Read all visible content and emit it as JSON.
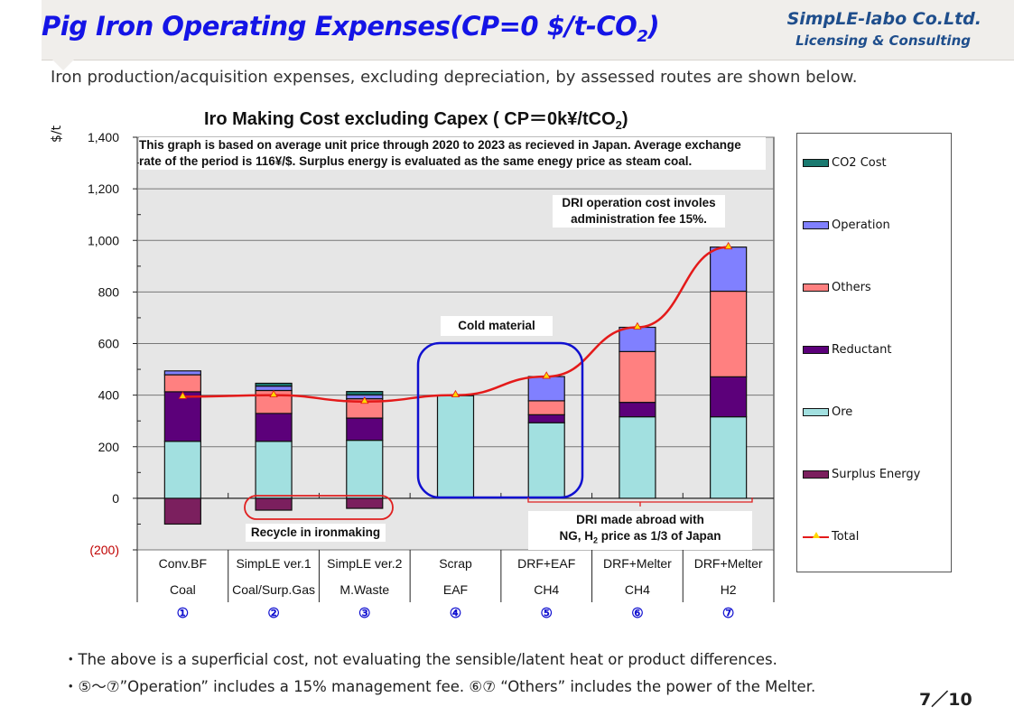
{
  "header": {
    "title": "Pig Iron Operating Expenses(CP=0 $/t-CO",
    "title_sub": "2",
    "title_end": ")",
    "company": "SimpLE-labo Co.Ltd.",
    "company_tagline": "Licensing & Consulting"
  },
  "intro": "Iron production/acquisition expenses, excluding depreciation, by assessed routes are shown below.",
  "chart_data": {
    "type": "bar",
    "stacked": true,
    "title": "Iro Making Cost excluding Capex ( CP＝0k¥/tCO",
    "title_sub": "2",
    "title_end": ")",
    "ylabel": "$/t",
    "ylim": [
      -200,
      1400
    ],
    "yticks": [
      -200,
      0,
      200,
      400,
      600,
      800,
      1000,
      1200,
      1400
    ],
    "ytick_labels": [
      "(200)",
      "0",
      "200",
      "400",
      "600",
      "800",
      "1,000",
      "1,200",
      "1,400"
    ],
    "grid": true,
    "legend_position": "right",
    "categories": [
      {
        "line1": "Conv.BF",
        "line2": "Coal",
        "number": "①"
      },
      {
        "line1": "SimpLE ver.1",
        "line2": "Coal/Surp.Gas",
        "number": "②"
      },
      {
        "line1": "SimpLE ver.2",
        "line2": "M.Waste",
        "number": "③"
      },
      {
        "line1": "Scrap",
        "line2": "EAF",
        "number": "④"
      },
      {
        "line1": "DRF+EAF",
        "line2": "CH4",
        "number": "⑤"
      },
      {
        "line1": "DRF+Melter",
        "line2": "CH4",
        "number": "⑥"
      },
      {
        "line1": "DRF+Melter",
        "line2": "H2",
        "number": "⑦"
      }
    ],
    "series": [
      {
        "name": "Surplus Energy",
        "color": "#7b1f5e",
        "values": [
          -100,
          -46,
          -39,
          0,
          0,
          0,
          0
        ]
      },
      {
        "name": "Ore",
        "color": "#a2e0e0",
        "values": [
          221,
          221,
          225,
          398,
          293,
          316,
          316
        ]
      },
      {
        "name": "Reductant",
        "color": "#5c007a",
        "values": [
          192,
          108,
          86,
          0,
          31,
          56,
          155
        ]
      },
      {
        "name": "Others",
        "color": "#ff8080",
        "values": [
          66,
          89,
          75,
          0,
          54,
          197,
          332
        ]
      },
      {
        "name": "Operation",
        "color": "#8080ff",
        "values": [
          15,
          17,
          15,
          0,
          94,
          94,
          171
        ]
      },
      {
        "name": "CO2 Cost",
        "color": "#1a7a70",
        "values": [
          0,
          11,
          13,
          2,
          0,
          0,
          0
        ]
      }
    ],
    "line_series": {
      "name": "Total",
      "color": "#e41a1a",
      "marker_color": "#ffd700",
      "values": [
        394,
        400,
        375,
        400,
        472,
        663,
        974
      ]
    },
    "legend_order": [
      "CO2 Cost",
      "Operation",
      "Others",
      "Reductant",
      "Ore",
      "Surplus Energy",
      "Total"
    ],
    "annotations": {
      "basis_note": "This graph is based on average unit price through 2020 to 2023  as recieved in Japan.  Average exchange rate of the period is 116¥/$. Surplus energy is evaluated as the same enegy price as steam coal.",
      "dri_fee_note_1": "DRI operation cost involes",
      "dri_fee_note_2": "administration fee 15%.",
      "cold_material": "Cold material",
      "recycle": "Recycle in ironmaking",
      "dri_abroad_1": "DRI made abroad with",
      "dri_abroad_2": "NG, H",
      "dri_abroad_2_sub": "2",
      "dri_abroad_2_end": " price as 1/3 of Japan"
    }
  },
  "footer": {
    "bullet1": "・The above is a superficial cost, not evaluating the sensible/latent heat or product differences.",
    "bullet2": "・⑤～⑦”Operation” includes a 15% management fee. ⑥⑦ “Others” includes the power of the Melter.",
    "page": "7／10"
  }
}
